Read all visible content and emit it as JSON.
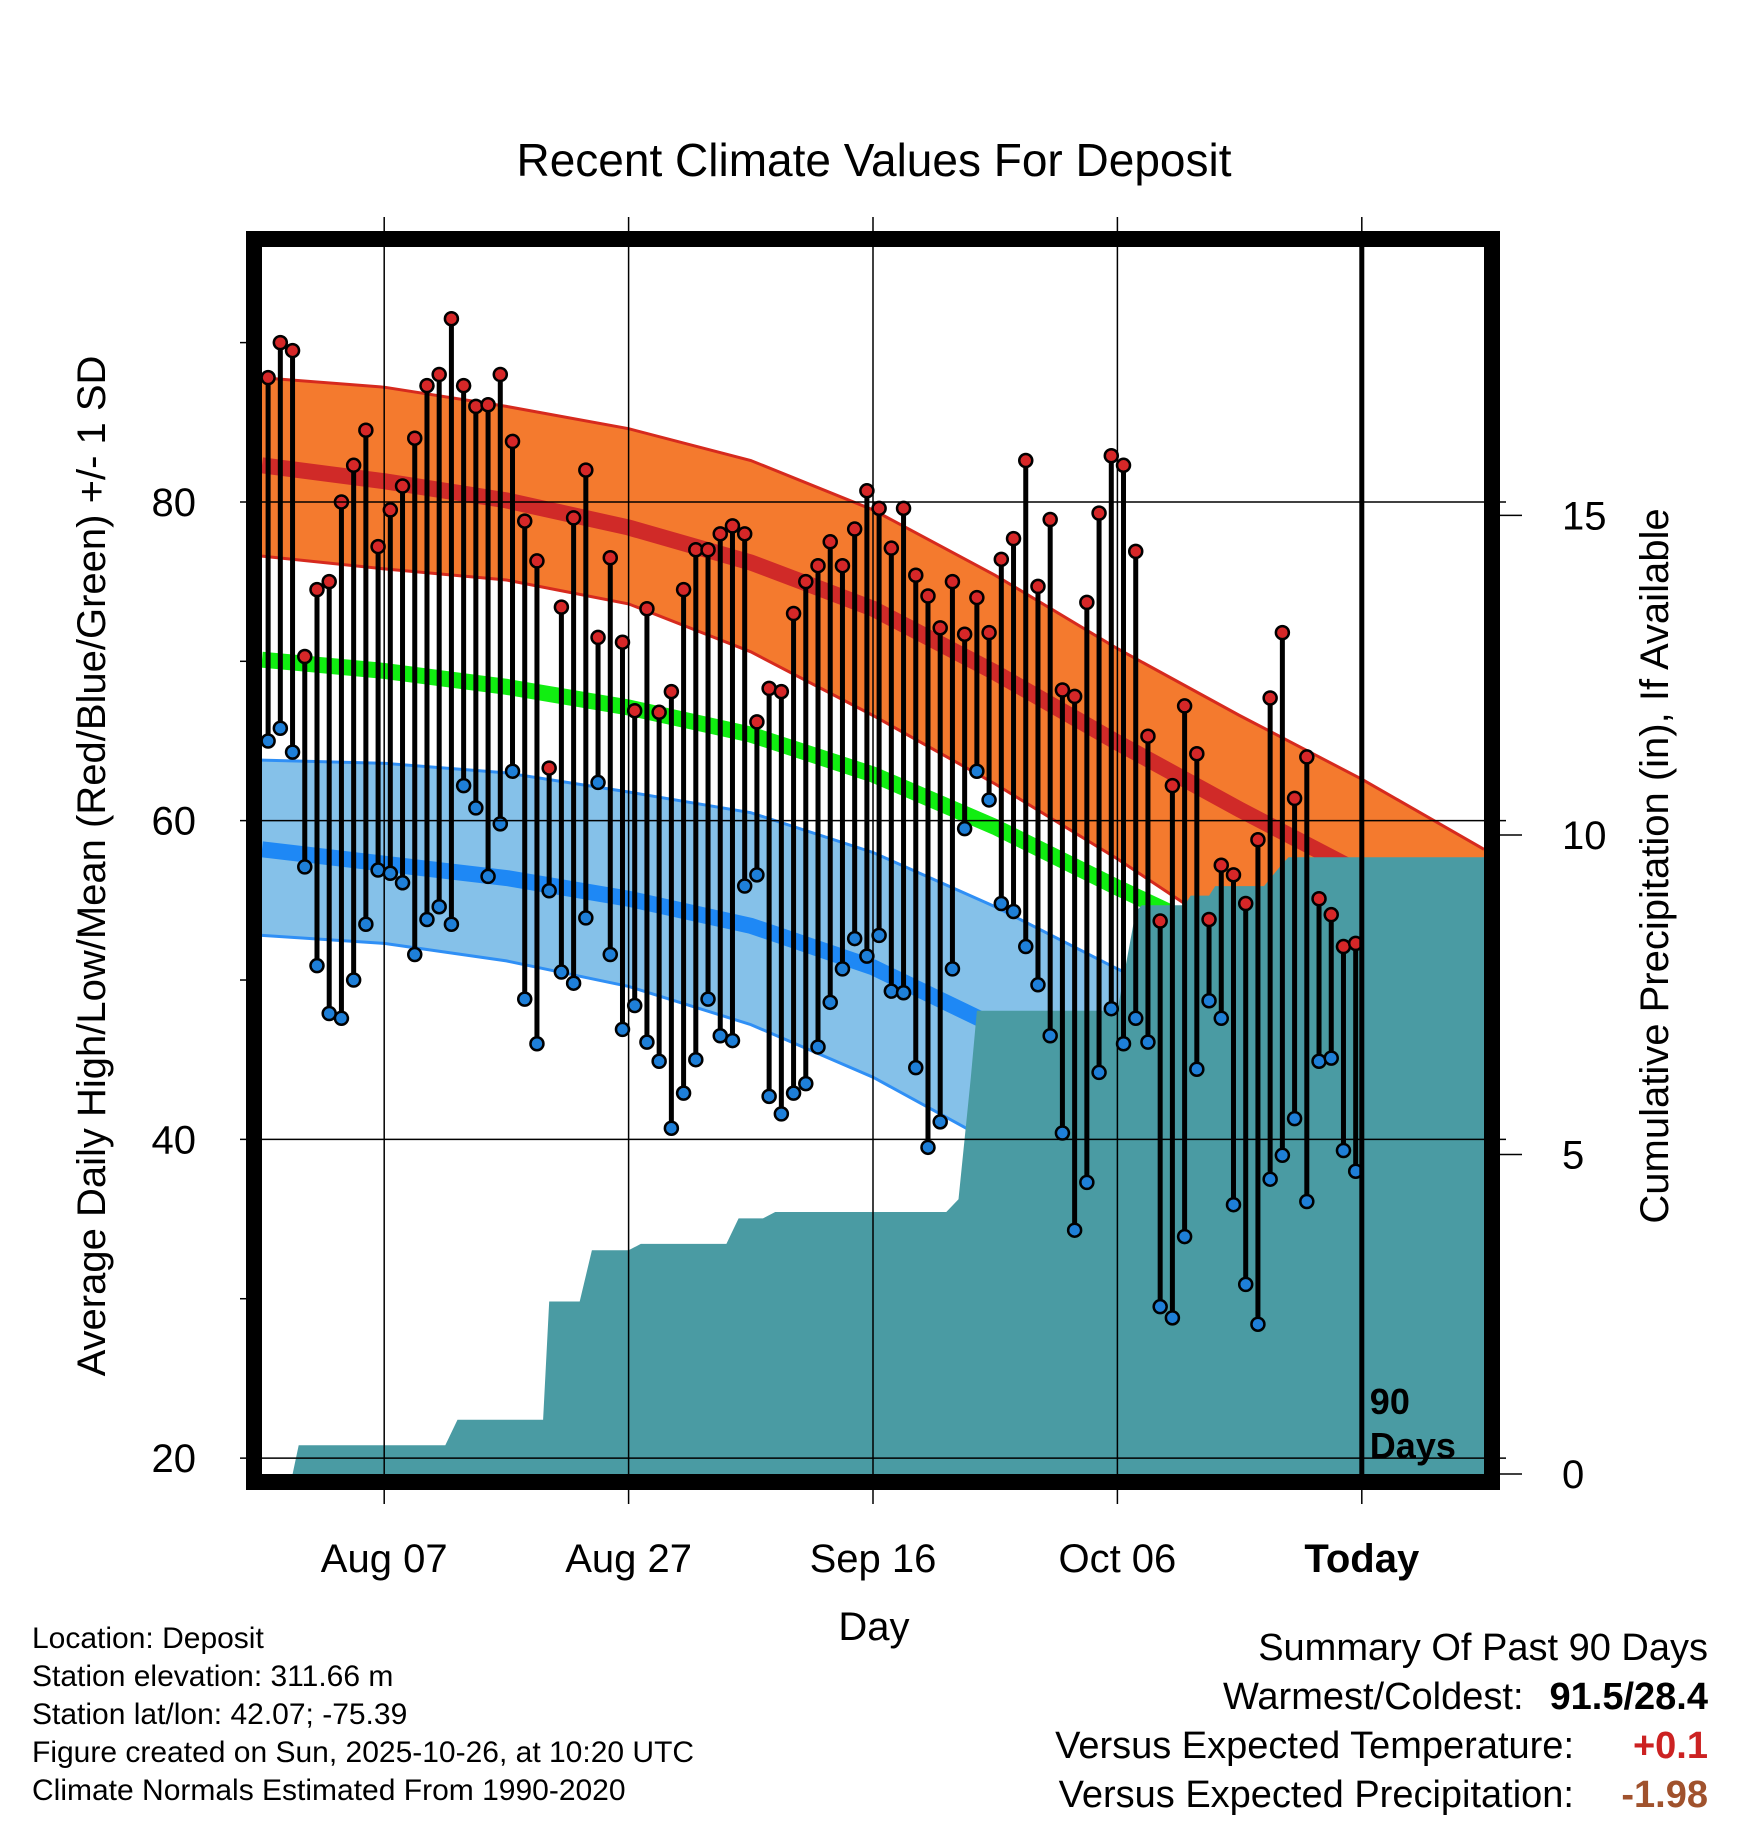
{
  "chart_data": {
    "type": "line",
    "title": "Recent Climate Values For Deposit",
    "xlabel": "Day",
    "ylabel": "Average Daily High/Low/Mean (Red/Blue/Green) +/- 1 SD",
    "y2label": "Cumulative Precipitation (in), If Available",
    "xlim": [
      0,
      100
    ],
    "ylim": [
      19,
      96
    ],
    "y2lim": [
      0,
      19.2
    ],
    "x_ticks": [
      {
        "day": 10,
        "label": "Aug 07"
      },
      {
        "day": 30,
        "label": "Aug 27"
      },
      {
        "day": 50,
        "label": "Sep 16"
      },
      {
        "day": 70,
        "label": "Oct 06"
      },
      {
        "day": 90,
        "label": "Today"
      }
    ],
    "y_ticks": [
      20,
      40,
      60,
      80
    ],
    "y_minor_ticks": [
      30,
      50,
      70,
      90
    ],
    "y2_ticks": [
      0,
      5,
      10,
      15
    ],
    "today_day": 90,
    "today_label": [
      "90",
      "Days"
    ],
    "normals": {
      "day": [
        0,
        10,
        20,
        30,
        40,
        50,
        60,
        70,
        80,
        90,
        100
      ],
      "high_mean": [
        82.3,
        81.3,
        80.1,
        78.4,
        76.2,
        73.3,
        69.3,
        64.9,
        60.7,
        56.7,
        52.6
      ],
      "high_sd_upper": [
        87.8,
        87.2,
        86.0,
        84.6,
        82.6,
        79.5,
        75.4,
        70.8,
        66.6,
        62.6,
        58.2
      ],
      "high_sd_lower": [
        76.6,
        75.8,
        75.1,
        73.6,
        70.6,
        66.6,
        62.3,
        57.6,
        52.5,
        48.1,
        44.0
      ],
      "mean": [
        70.1,
        69.4,
        68.4,
        67.1,
        65.4,
        62.9,
        59.6,
        55.8,
        52.2,
        48.6,
        42.3
      ],
      "low_mean": [
        58.2,
        57.3,
        56.4,
        55.1,
        53.4,
        50.8,
        47.1,
        43.6,
        40.0,
        36.6,
        32.0
      ],
      "low_sd_upper": [
        63.8,
        63.6,
        63.0,
        61.8,
        60.5,
        58.0,
        54.6,
        50.7,
        47.1,
        43.4,
        39.8
      ],
      "low_sd_lower": [
        52.8,
        52.3,
        51.2,
        49.6,
        47.2,
        43.9,
        39.7,
        35.4,
        31.1,
        27.0,
        22.8
      ]
    },
    "series": [
      {
        "name": "Daily High",
        "color": "#d62728",
        "values": [
          87.8,
          90.0,
          89.5,
          70.3,
          74.5,
          75.0,
          80.0,
          82.3,
          84.5,
          77.2,
          79.5,
          81.0,
          84.0,
          87.3,
          88.0,
          91.5,
          87.3,
          86.0,
          86.1,
          88.0,
          83.8,
          78.8,
          76.3,
          63.3,
          73.4,
          79.0,
          82.0,
          71.5,
          76.5,
          71.2,
          66.9,
          73.3,
          66.8,
          68.1,
          74.5,
          77.0,
          77.0,
          78.0,
          78.5,
          78.0,
          66.2,
          68.3,
          68.1,
          73.0,
          75.0,
          76.0,
          77.5,
          76.0,
          78.3,
          80.7,
          79.6,
          77.1,
          79.6,
          75.4,
          74.1,
          72.1,
          75.0,
          71.7,
          74.0,
          71.8,
          76.4,
          77.7,
          82.6,
          74.7,
          78.9,
          68.2,
          67.8,
          73.7,
          79.3,
          82.9,
          82.3,
          76.9,
          65.3,
          53.7,
          62.2,
          67.2,
          64.2,
          53.8,
          57.2,
          56.6,
          54.8,
          58.8,
          67.7,
          71.8,
          61.4,
          64.0,
          55.1,
          54.1,
          52.1,
          52.3
        ]
      },
      {
        "name": "Daily Low",
        "color": "#1e7fd8",
        "values": [
          65.0,
          65.8,
          64.3,
          57.1,
          50.9,
          47.9,
          47.6,
          50.0,
          53.5,
          56.9,
          56.7,
          56.1,
          51.6,
          53.8,
          54.6,
          53.5,
          62.2,
          60.8,
          56.5,
          59.8,
          63.1,
          48.8,
          46.0,
          55.6,
          50.5,
          49.8,
          53.9,
          62.4,
          51.6,
          46.9,
          48.4,
          46.1,
          44.9,
          40.7,
          42.9,
          45.0,
          48.8,
          46.5,
          46.2,
          55.9,
          56.6,
          42.7,
          41.6,
          42.9,
          43.5,
          45.8,
          48.6,
          50.7,
          52.6,
          51.5,
          52.8,
          49.3,
          49.2,
          44.5,
          39.5,
          41.1,
          50.7,
          59.5,
          63.1,
          61.3,
          54.8,
          54.3,
          52.1,
          49.7,
          46.5,
          40.4,
          34.3,
          37.3,
          44.2,
          48.2,
          46.0,
          47.6,
          46.1,
          29.5,
          28.8,
          33.9,
          44.4,
          48.7,
          47.6,
          35.9,
          30.9,
          28.4,
          37.5,
          39.0,
          41.3,
          36.1,
          44.9,
          45.1,
          39.3,
          38.0
        ]
      },
      {
        "name": "Cumulative Precipitation",
        "color": "#4a9ba3",
        "unit": "in",
        "day": [
          0,
          2.5,
          3.0,
          15.0,
          16.0,
          23.0,
          23.5,
          26.0,
          27.0,
          30.0,
          31.0,
          38.0,
          39.0,
          41.0,
          42.0,
          56.0,
          57.0,
          58.0,
          58.5,
          70.0,
          71.5,
          72.0,
          75.5,
          76.0,
          77.5,
          78.0,
          82.0,
          83.5,
          84.0,
          100
        ],
        "values": [
          0,
          0,
          0.45,
          0.45,
          0.85,
          0.85,
          2.7,
          2.7,
          3.5,
          3.5,
          3.6,
          3.6,
          4.0,
          4.0,
          4.1,
          4.1,
          4.3,
          6.2,
          7.25,
          7.25,
          8.8,
          8.9,
          8.9,
          9.05,
          9.05,
          9.2,
          9.2,
          9.55,
          9.65,
          9.65
        ]
      }
    ]
  },
  "location_info": {
    "location": "Location: Deposit",
    "elevation": "Station elevation: 311.66 m",
    "latlon": "Station lat/lon: 42.07; -75.39",
    "created": "Figure created on Sun, 2025-10-26, at 10:20 UTC",
    "normals": "Climate Normals Estimated From 1990-2020"
  },
  "summary": {
    "heading": "Summary Of Past 90 Days",
    "warmest_label": "Warmest/Coldest:",
    "warmest_value": "91.5/28.4",
    "temp_label": "Versus Expected Temperature:",
    "temp_value": "+0.1",
    "temp_color": "#cc2222",
    "precip_label": "Versus Expected Precipitation:",
    "precip_value": "-1.98",
    "precip_color": "#a0522d"
  }
}
